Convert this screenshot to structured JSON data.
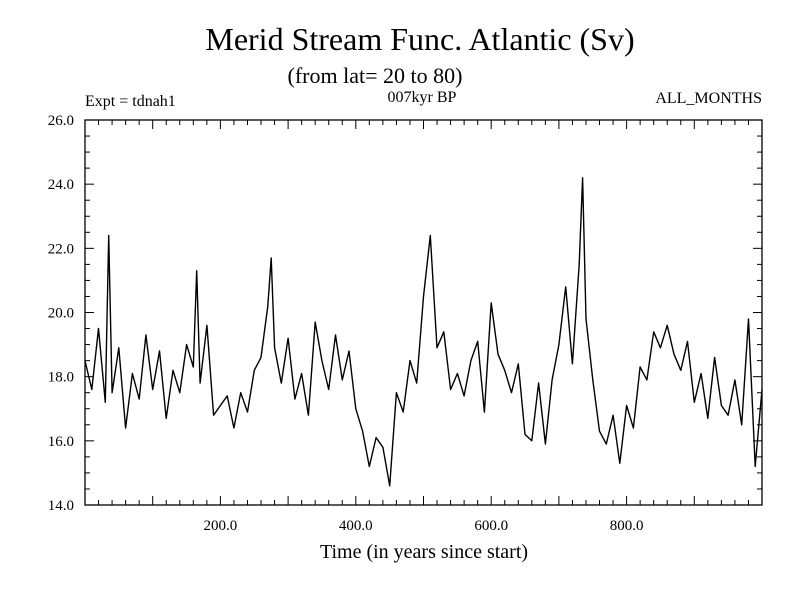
{
  "chart_data": {
    "type": "line",
    "title": "Merid Stream Func. Atlantic (Sv)",
    "subtitle": "(from lat= 20 to 80)",
    "label_left": "Expt = tdnah1",
    "label_center": "007kyr BP",
    "label_right": "ALL_MONTHS",
    "xlabel": "Time (in years since start)",
    "ylabel": "",
    "xlim": [
      0,
      1000
    ],
    "ylim": [
      14.0,
      26.0
    ],
    "x_ticks": [
      200,
      400,
      600,
      800
    ],
    "x_tick_labels": [
      "200.0",
      "400.0",
      "600.0",
      "800.0"
    ],
    "y_ticks": [
      14,
      16,
      18,
      20,
      22,
      24,
      26
    ],
    "y_tick_labels": [
      "14.0",
      "16.0",
      "18.0",
      "20.0",
      "22.0",
      "24.0",
      "26.0"
    ],
    "grid": false,
    "series": [
      {
        "name": "Merid Stream Func. Atlantic",
        "color": "#000000",
        "x": [
          0,
          10,
          20,
          30,
          35,
          40,
          50,
          60,
          70,
          80,
          90,
          100,
          110,
          120,
          130,
          140,
          150,
          160,
          165,
          170,
          180,
          190,
          200,
          210,
          220,
          230,
          240,
          250,
          260,
          270,
          275,
          280,
          290,
          300,
          310,
          320,
          330,
          340,
          350,
          360,
          370,
          380,
          390,
          400,
          410,
          420,
          430,
          440,
          450,
          460,
          470,
          480,
          490,
          500,
          510,
          520,
          530,
          540,
          550,
          560,
          570,
          580,
          590,
          600,
          610,
          620,
          630,
          640,
          650,
          660,
          670,
          680,
          690,
          700,
          710,
          720,
          730,
          735,
          740,
          750,
          760,
          770,
          780,
          790,
          800,
          810,
          820,
          830,
          840,
          850,
          860,
          870,
          880,
          890,
          900,
          910,
          920,
          930,
          940,
          950,
          960,
          970,
          980,
          990,
          1000
        ],
        "y": [
          18.5,
          17.6,
          19.5,
          17.2,
          22.4,
          17.5,
          18.9,
          16.4,
          18.1,
          17.3,
          19.3,
          17.6,
          18.8,
          16.7,
          18.2,
          17.5,
          19.0,
          18.3,
          21.3,
          17.8,
          19.6,
          16.8,
          17.1,
          17.4,
          16.4,
          17.5,
          16.9,
          18.2,
          18.6,
          20.2,
          21.7,
          18.9,
          17.8,
          19.2,
          17.3,
          18.1,
          16.8,
          19.7,
          18.5,
          17.6,
          19.3,
          17.9,
          18.8,
          17.0,
          16.3,
          15.2,
          16.1,
          15.8,
          14.6,
          17.5,
          16.9,
          18.5,
          17.8,
          20.5,
          22.4,
          18.9,
          19.4,
          17.6,
          18.1,
          17.4,
          18.5,
          19.1,
          16.9,
          20.3,
          18.7,
          18.2,
          17.5,
          18.4,
          16.2,
          16.0,
          17.8,
          15.9,
          17.9,
          19.0,
          20.8,
          18.4,
          21.5,
          24.2,
          19.8,
          17.9,
          16.3,
          15.9,
          16.8,
          15.3,
          17.1,
          16.4,
          18.3,
          17.9,
          19.4,
          18.9,
          19.6,
          18.7,
          18.2,
          19.1,
          17.2,
          18.1,
          16.7,
          18.6,
          17.1,
          16.8,
          17.9,
          16.5,
          19.8,
          15.2,
          17.6
        ]
      }
    ]
  }
}
